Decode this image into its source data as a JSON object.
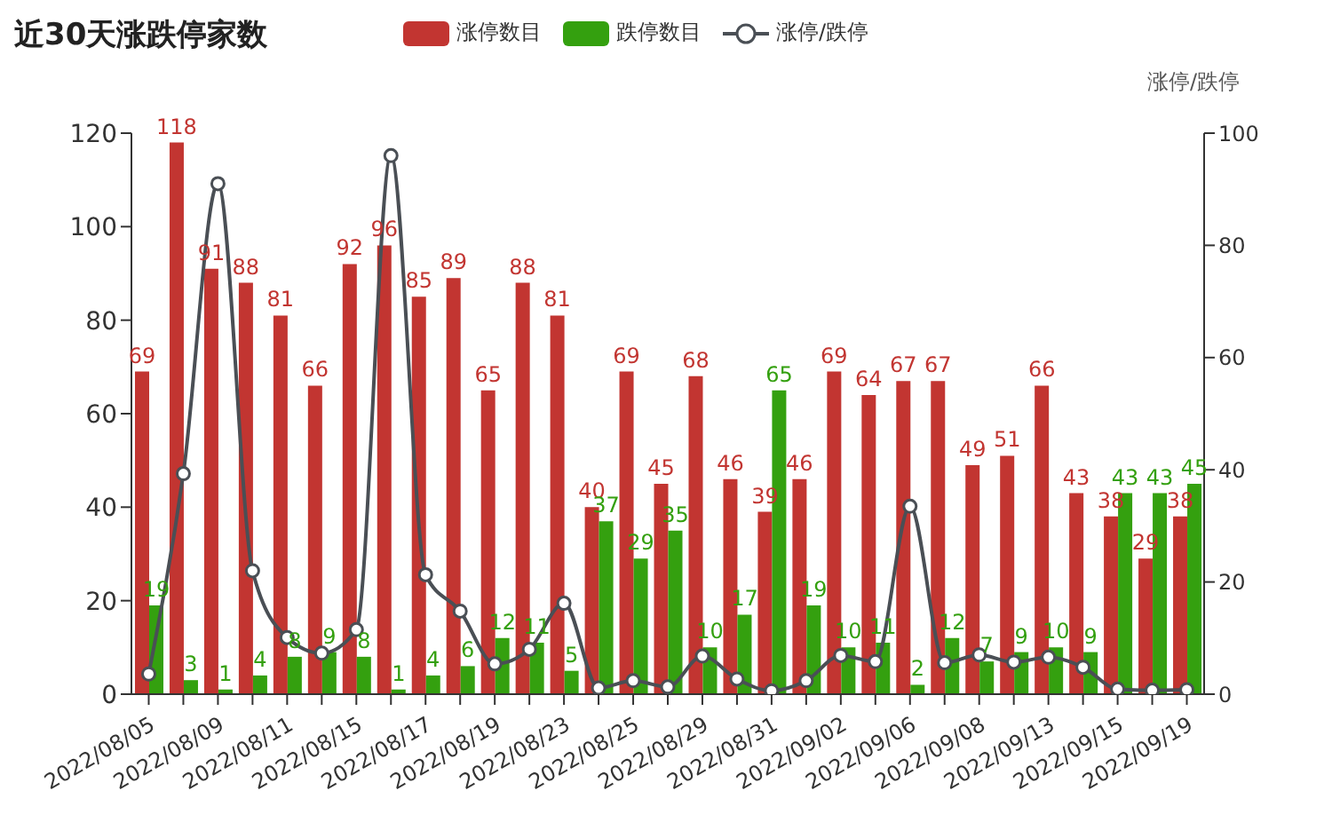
{
  "chart_data": {
    "type": "bar",
    "title": "近30天涨跌停家数",
    "y2label": "涨停/跌停",
    "categories": [
      "2022/08/05",
      null,
      "2022/08/09",
      null,
      "2022/08/11",
      null,
      "2022/08/15",
      null,
      "2022/08/17",
      null,
      "2022/08/19",
      null,
      "2022/08/23",
      null,
      "2022/08/25",
      null,
      "2022/08/29",
      null,
      "2022/08/31",
      null,
      "2022/09/02",
      null,
      "2022/09/06",
      null,
      "2022/09/08",
      null,
      "2022/09/13",
      null,
      "2022/09/15",
      null,
      "2022/09/19"
    ],
    "series": [
      {
        "name": "涨停数目",
        "color": "#c23531",
        "values": [
          69,
          118,
          91,
          88,
          81,
          66,
          92,
          96,
          85,
          89,
          65,
          88,
          81,
          40,
          69,
          45,
          68,
          46,
          39,
          46,
          69,
          64,
          67,
          67,
          49,
          51,
          66,
          43,
          38,
          29,
          38
        ],
        "value_labels": [
          "69",
          "118",
          "91",
          "88",
          "81",
          "66",
          "92",
          "96",
          "85",
          "89",
          "65",
          "88",
          "81",
          "40",
          "69",
          "45",
          "68",
          "46",
          "39",
          "46",
          "69",
          "64",
          "67",
          "67",
          "49",
          "51",
          "66",
          "43",
          "38",
          "29",
          "38"
        ]
      },
      {
        "name": "跌停数目",
        "color": "#34a00f",
        "values": [
          19,
          3,
          1,
          4,
          8,
          9,
          8,
          1,
          4,
          6,
          12,
          11,
          5,
          37,
          29,
          35,
          10,
          17,
          65,
          19,
          10,
          11,
          2,
          12,
          7,
          9,
          10,
          9,
          43,
          43,
          45
        ],
        "value_labels": [
          "19",
          "3",
          "1",
          "4",
          "8",
          "9",
          "8",
          "1",
          "4",
          "6",
          "12",
          "11",
          "5",
          "37",
          "29",
          "35",
          "10",
          "17",
          "65",
          "19",
          "10",
          "11",
          "2",
          "12",
          "7",
          "9",
          "10",
          "9",
          "43",
          "43",
          "45"
        ]
      },
      {
        "name": "涨停/跌停",
        "type": "line",
        "axis": "y2",
        "color": "#4a4f55",
        "marker": "circle",
        "values": [
          3.6,
          39.3,
          91,
          22,
          10.1,
          7.3,
          11.5,
          96,
          21.3,
          14.8,
          5.4,
          8,
          16.2,
          1.1,
          2.4,
          1.3,
          6.8,
          2.7,
          0.6,
          2.4,
          6.9,
          5.8,
          33.5,
          5.6,
          7,
          5.7,
          6.6,
          4.8,
          0.9,
          0.7,
          0.8
        ]
      }
    ],
    "ylim": [
      0,
      120
    ],
    "yticks": [
      0,
      20,
      40,
      60,
      80,
      100,
      120
    ],
    "y2lim": [
      0,
      100
    ],
    "y2ticks": [
      0,
      20,
      40,
      60,
      80,
      100
    ],
    "legend": "top"
  }
}
